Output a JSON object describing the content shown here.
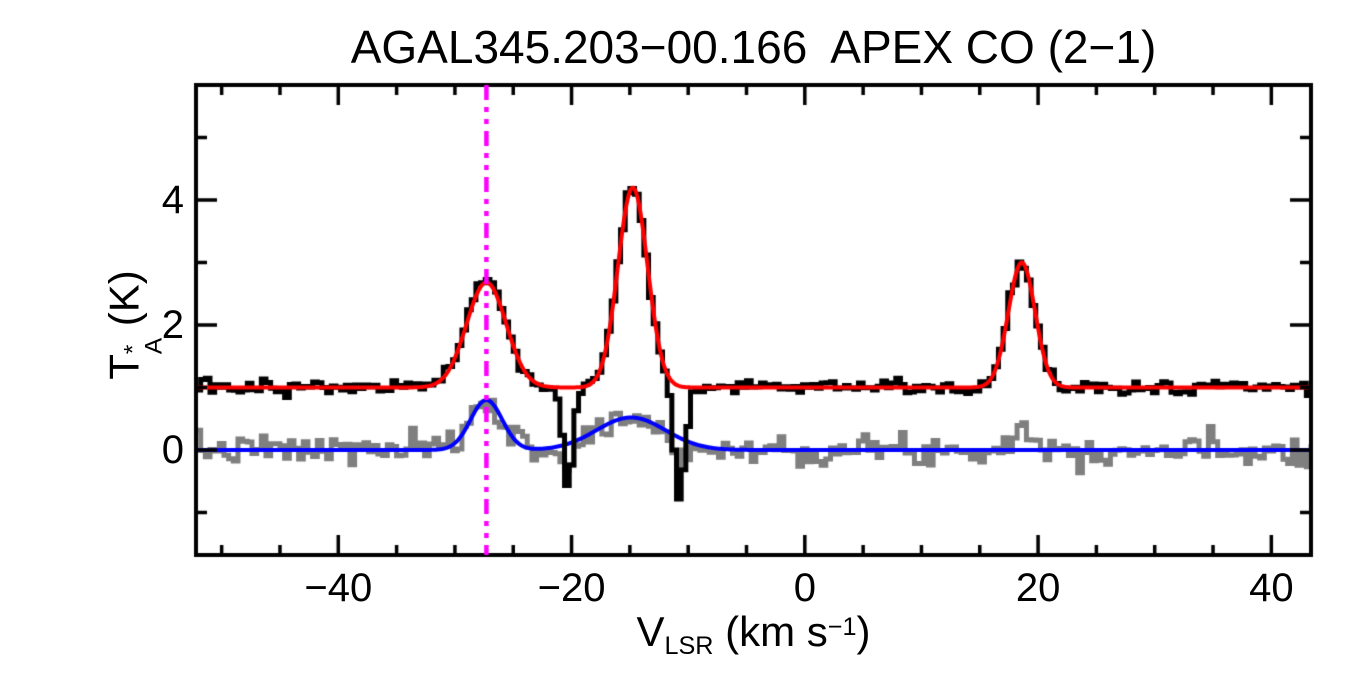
{
  "figure": {
    "title": "AGAL345.203−00.166  APEX CO (2−1)",
    "xlabel_parts": {
      "symbol": "V",
      "subscript": "LSR",
      "unit_prefix": " (km s",
      "exponent": "−1",
      "unit_suffix": ")"
    },
    "ylabel_parts": {
      "symbol": "T",
      "superscript": "*",
      "subscript": "A",
      "unit": " (K)"
    }
  },
  "chart_data": {
    "type": "line",
    "title": "AGAL345.203−00.166  APEX CO (2−1)",
    "xlabel": "V_LSR (km s−1)",
    "ylabel": "T*_A (K)",
    "xlim": [
      -52.2,
      43.4
    ],
    "ylim": [
      -1.68,
      5.84
    ],
    "x_major_ticks": [
      -40,
      -20,
      0,
      20,
      40
    ],
    "x_minor_step": 5,
    "y_major_ticks": [
      0,
      2,
      4
    ],
    "y_minor_step": 1,
    "grid": false,
    "legend": "none",
    "channel_width_kms": 0.4,
    "systemic_velocity_marker": {
      "velocity_kms": -27.3,
      "color": "#ff00ff",
      "style": "dash-dot-dot"
    },
    "series": [
      {
        "name": "observed-spectrum-offset",
        "style": "histogram",
        "color": "#000000",
        "line_width": 5,
        "baseline_K": 1.0,
        "noise_sigma_K": 0.058,
        "seed": 13,
        "components": [
          {
            "center_kms": -27.3,
            "amplitude_K": 1.68,
            "fwhm_kms": 4.0
          },
          {
            "center_kms": -14.75,
            "amplitude_K": 3.2,
            "fwhm_kms": 3.0
          },
          {
            "center_kms": 18.6,
            "amplitude_K": 2.0,
            "fwhm_kms": 2.7
          },
          {
            "center_kms": -20.3,
            "amplitude_K": -1.62,
            "fwhm_kms": 1.0
          },
          {
            "center_kms": -10.75,
            "amplitude_K": -1.75,
            "fwhm_kms": 1.1
          }
        ]
      },
      {
        "name": "second-spectrum",
        "style": "histogram",
        "color": "#7f7f7f",
        "line_width": 5,
        "baseline_K": 0.0,
        "noise_sigma_K": 0.115,
        "seed": 7,
        "components": [
          {
            "center_kms": -27.3,
            "amplitude_K": 0.8,
            "fwhm_kms": 3.2
          },
          {
            "center_kms": -14.9,
            "amplitude_K": 0.5,
            "fwhm_kms": 7.0
          },
          {
            "center_kms": 18.6,
            "amplitude_K": 0.3,
            "fwhm_kms": 2.6
          },
          {
            "center_kms": -20.3,
            "amplitude_K": -0.45,
            "fwhm_kms": 1.0
          },
          {
            "center_kms": -10.75,
            "amplitude_K": -0.5,
            "fwhm_kms": 1.0
          }
        ]
      },
      {
        "name": "gaussian-fit-offset-spectrum",
        "style": "curve",
        "color": "#ff0000",
        "line_width": 4,
        "baseline_K": 1.0,
        "components": [
          {
            "center_kms": -27.3,
            "amplitude_K": 1.68,
            "fwhm_kms": 4.0
          },
          {
            "center_kms": -14.75,
            "amplitude_K": 3.2,
            "fwhm_kms": 3.0
          },
          {
            "center_kms": 18.6,
            "amplitude_K": 2.0,
            "fwhm_kms": 2.7
          }
        ]
      },
      {
        "name": "gaussian-fit-second-spectrum",
        "style": "curve",
        "color": "#0000ff",
        "line_width": 4,
        "baseline_K": 0.0,
        "components": [
          {
            "center_kms": -27.3,
            "amplitude_K": 0.8,
            "fwhm_kms": 3.2
          },
          {
            "center_kms": -14.9,
            "amplitude_K": 0.52,
            "fwhm_kms": 7.0
          }
        ]
      }
    ]
  }
}
